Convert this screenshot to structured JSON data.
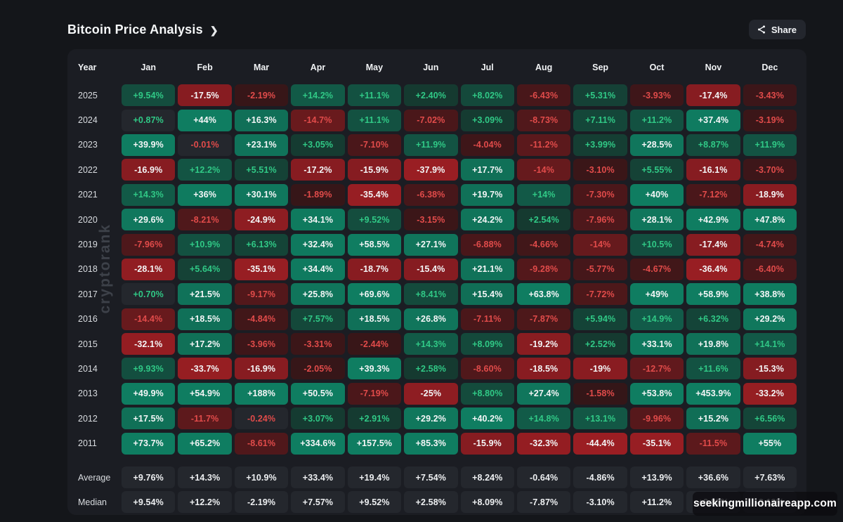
{
  "header": {
    "title": "Bitcoin Price Analysis",
    "share_label": "Share"
  },
  "icons": {
    "chevron_right": "❯",
    "share": "share-icon"
  },
  "watermarks": {
    "vertical": "cryptorank",
    "overlay": "seekingmillionaireapp.com"
  },
  "colors": {
    "page_bg": "#14161a",
    "panel_bg": "#1b1d23",
    "neutral_cell": "#24272d",
    "green_base": "#16332b",
    "green_strong": "#0f7d61",
    "red_base": "#2e1517",
    "red_strong": "#9b1e23",
    "green_text": "#30c986",
    "red_text": "#e14b4a",
    "white_text": "#f4f6f7",
    "summary_text": "#eef0f2"
  },
  "chart_data": {
    "type": "heatmap",
    "title": "Bitcoin Price Analysis",
    "columns": [
      "Year",
      "Jan",
      "Feb",
      "Mar",
      "Apr",
      "May",
      "Jun",
      "Jul",
      "Aug",
      "Sep",
      "Oct",
      "Nov",
      "Dec"
    ],
    "series": [
      {
        "name": "2025",
        "values": [
          "+9.54%",
          "-17.5%",
          "-2.19%",
          "+14.2%",
          "+11.1%",
          "+2.40%",
          "+8.02%",
          "-6.43%",
          "+5.31%",
          "-3.93%",
          "-17.4%",
          "-3.43%"
        ]
      },
      {
        "name": "2024",
        "values": [
          "+0.87%",
          "+44%",
          "+16.3%",
          "-14.7%",
          "+11.1%",
          "-7.02%",
          "+3.09%",
          "-8.73%",
          "+7.11%",
          "+11.2%",
          "+37.4%",
          "-3.19%"
        ]
      },
      {
        "name": "2023",
        "values": [
          "+39.9%",
          "-0.01%",
          "+23.1%",
          "+3.05%",
          "-7.10%",
          "+11.9%",
          "-4.04%",
          "-11.2%",
          "+3.99%",
          "+28.5%",
          "+8.87%",
          "+11.9%"
        ]
      },
      {
        "name": "2022",
        "values": [
          "-16.9%",
          "+12.2%",
          "+5.51%",
          "-17.2%",
          "-15.9%",
          "-37.9%",
          "+17.7%",
          "-14%",
          "-3.10%",
          "+5.55%",
          "-16.1%",
          "-3.70%"
        ]
      },
      {
        "name": "2021",
        "values": [
          "+14.3%",
          "+36%",
          "+30.1%",
          "-1.89%",
          "-35.4%",
          "-6.38%",
          "+19.7%",
          "+14%",
          "-7.30%",
          "+40%",
          "-7.12%",
          "-18.9%"
        ]
      },
      {
        "name": "2020",
        "values": [
          "+29.6%",
          "-8.21%",
          "-24.9%",
          "+34.1%",
          "+9.52%",
          "-3.15%",
          "+24.2%",
          "+2.54%",
          "-7.96%",
          "+28.1%",
          "+42.9%",
          "+47.8%"
        ]
      },
      {
        "name": "2019",
        "values": [
          "-7.96%",
          "+10.9%",
          "+6.13%",
          "+32.4%",
          "+58.5%",
          "+27.1%",
          "-6.88%",
          "-4.66%",
          "-14%",
          "+10.5%",
          "-17.4%",
          "-4.74%"
        ]
      },
      {
        "name": "2018",
        "values": [
          "-28.1%",
          "+5.64%",
          "-35.1%",
          "+34.4%",
          "-18.7%",
          "-15.4%",
          "+21.1%",
          "-9.28%",
          "-5.77%",
          "-4.67%",
          "-36.4%",
          "-6.40%"
        ]
      },
      {
        "name": "2017",
        "values": [
          "+0.70%",
          "+21.5%",
          "-9.17%",
          "+25.8%",
          "+69.6%",
          "+8.41%",
          "+15.4%",
          "+63.8%",
          "-7.72%",
          "+49%",
          "+58.9%",
          "+38.8%"
        ]
      },
      {
        "name": "2016",
        "values": [
          "-14.4%",
          "+18.5%",
          "-4.84%",
          "+7.57%",
          "+18.5%",
          "+26.8%",
          "-7.11%",
          "-7.87%",
          "+5.94%",
          "+14.9%",
          "+6.32%",
          "+29.2%"
        ]
      },
      {
        "name": "2015",
        "values": [
          "-32.1%",
          "+17.2%",
          "-3.96%",
          "-3.31%",
          "-2.44%",
          "+14.3%",
          "+8.09%",
          "-19.2%",
          "+2.52%",
          "+33.1%",
          "+19.8%",
          "+14.1%"
        ]
      },
      {
        "name": "2014",
        "values": [
          "+9.93%",
          "-33.7%",
          "-16.9%",
          "-2.05%",
          "+39.3%",
          "+2.58%",
          "-8.60%",
          "-18.5%",
          "-19%",
          "-12.7%",
          "+11.6%",
          "-15.3%"
        ]
      },
      {
        "name": "2013",
        "values": [
          "+49.9%",
          "+54.9%",
          "+188%",
          "+50.5%",
          "-7.19%",
          "-25%",
          "+8.80%",
          "+27.4%",
          "-1.58%",
          "+53.8%",
          "+453.9%",
          "-33.2%"
        ]
      },
      {
        "name": "2012",
        "values": [
          "+17.5%",
          "-11.7%",
          "-0.24%",
          "+3.07%",
          "+2.91%",
          "+29.2%",
          "+40.2%",
          "+14.8%",
          "+13.1%",
          "-9.96%",
          "+15.2%",
          "+6.56%"
        ]
      },
      {
        "name": "2011",
        "values": [
          "+73.7%",
          "+65.2%",
          "-8.61%",
          "+334.6%",
          "+157.5%",
          "+85.3%",
          "-15.9%",
          "-32.3%",
          "-44.4%",
          "-35.1%",
          "-11.5%",
          "+55%"
        ]
      }
    ],
    "summary": [
      {
        "name": "Average",
        "values": [
          "+9.76%",
          "+14.3%",
          "+10.9%",
          "+33.4%",
          "+19.4%",
          "+7.54%",
          "+8.24%",
          "-0.64%",
          "-4.86%",
          "+13.9%",
          "+36.6%",
          "+7.63%"
        ]
      },
      {
        "name": "Median",
        "values": [
          "+9.54%",
          "+12.2%",
          "-2.19%",
          "+7.57%",
          "+9.52%",
          "+2.58%",
          "+8.09%",
          "-7.87%",
          "-3.10%",
          "+11.2%",
          "+8.87%",
          "-3.19%"
        ]
      }
    ],
    "legend": "none",
    "color_rule": "green positive / red negative, background intensity scales with magnitude, white text when |value| >= 15%"
  }
}
